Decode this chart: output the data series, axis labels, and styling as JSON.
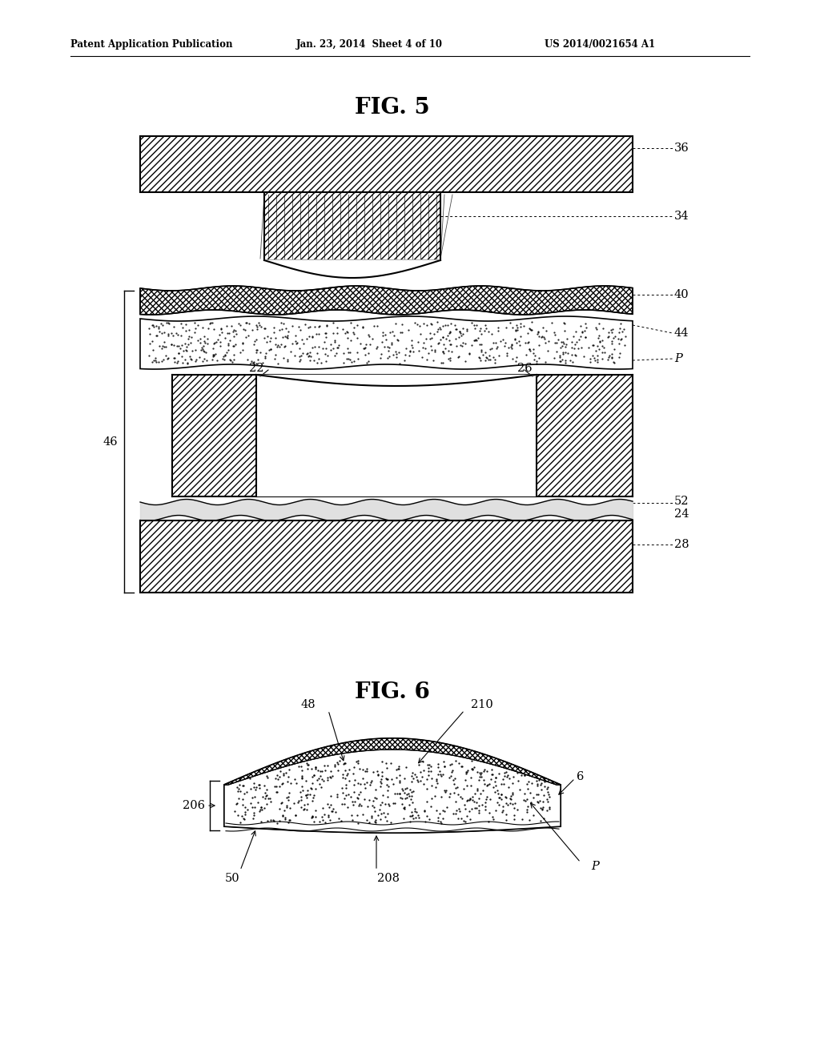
{
  "header_left": "Patent Application Publication",
  "header_center": "Jan. 23, 2014  Sheet 4 of 10",
  "header_right": "US 2014/0021654 A1",
  "fig5_title": "FIG. 5",
  "fig6_title": "FIG. 6",
  "bg_color": "#ffffff"
}
